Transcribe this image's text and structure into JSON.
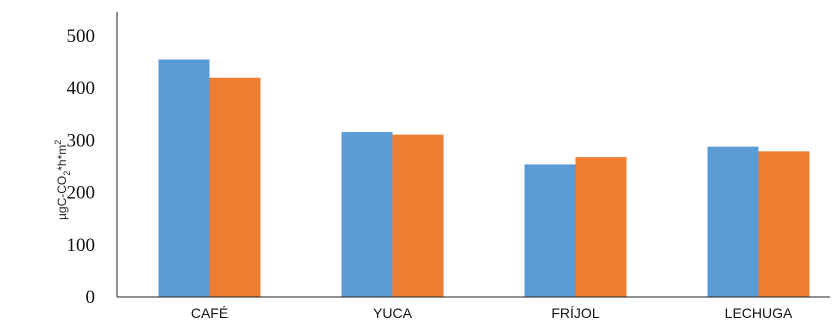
{
  "chart_data": {
    "type": "bar",
    "title": "",
    "xlabel": "",
    "ylabel": {
      "main": "µgC-CO",
      "sub": "2",
      "mid": "*h*m",
      "sup": "2"
    },
    "categories": [
      "CAFÉ",
      "YUCA",
      "FRÍJOL",
      "LECHUGA"
    ],
    "series": [
      {
        "values": [
          455,
          316,
          254,
          288
        ],
        "color": "#5b9bd5"
      },
      {
        "values": [
          420,
          311,
          268,
          279
        ],
        "color": "#ed7d31"
      }
    ],
    "ylim": [
      0,
      500
    ],
    "yticks": [
      "0",
      "100",
      "200",
      "300",
      "400",
      "500"
    ],
    "grid": false,
    "legend": "none"
  }
}
